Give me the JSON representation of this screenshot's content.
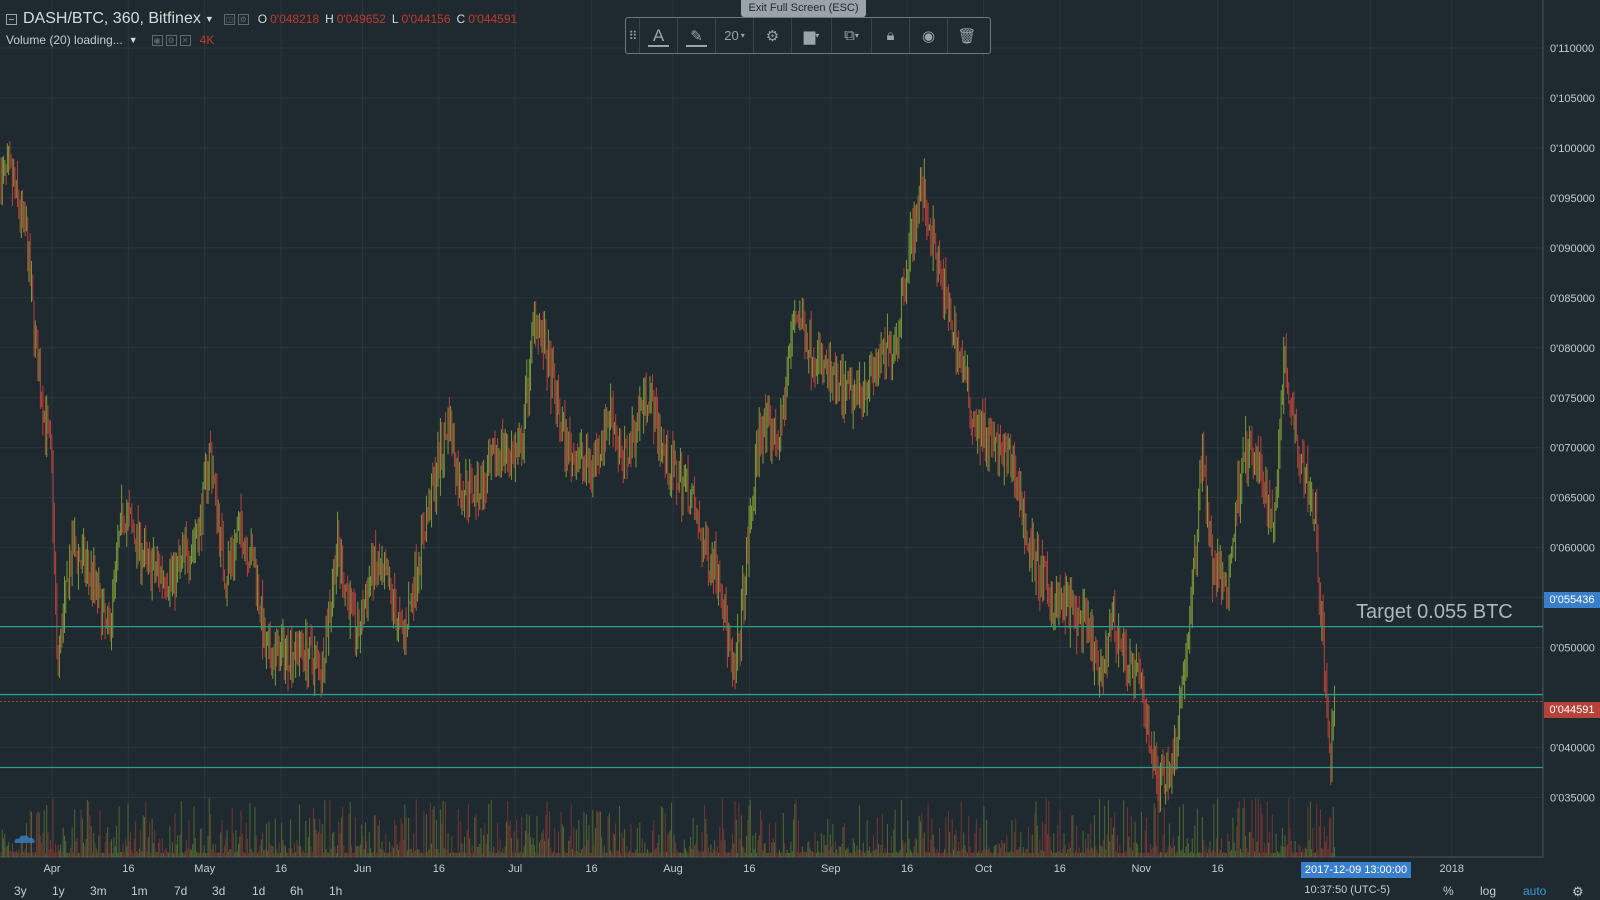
{
  "header": {
    "symbol": "DASH/BTC, 360, Bitfinex",
    "ohlc": [
      {
        "label": "O",
        "value": "0'048218"
      },
      {
        "label": "H",
        "value": "0'049652"
      },
      {
        "label": "L",
        "value": "0'044156"
      },
      {
        "label": "C",
        "value": "0'044591"
      }
    ],
    "volume_label": "Volume (20) loading...",
    "volume_value": "4K"
  },
  "exit_fullscreen": "Exit Full Screen (ESC)",
  "toolbar": {
    "font_size": "20",
    "icons": [
      "text-icon",
      "pencil-icon",
      "gear-icon",
      "fill-icon",
      "clone-icon",
      "lock-icon",
      "eye-icon",
      "trash-icon"
    ]
  },
  "annotation": "Target 0.055 BTC",
  "price_axis": {
    "ticks": [
      "0'110000",
      "0'105000",
      "0'100000",
      "0'095000",
      "0'090000",
      "0'085000",
      "0'080000",
      "0'075000",
      "0'070000",
      "0'065000",
      "0'060000",
      "0'055436",
      "0'050000",
      "0'044591",
      "0'040000",
      "0'035000"
    ]
  },
  "time_axis": {
    "labels": [
      "Apr",
      "16",
      "May",
      "16",
      "Jun",
      "16",
      "Jul",
      "16",
      "Aug",
      "16",
      "Sep",
      "16",
      "Oct",
      "16",
      "Nov",
      "16",
      "2018"
    ],
    "crosshair": "2017-12-09 13:00:00"
  },
  "price_markers": {
    "line_label": "0'055436",
    "last_price": "0'044591"
  },
  "timeframes": [
    "3y",
    "1y",
    "3m",
    "1m",
    "7d",
    "3d",
    "1d",
    "6h",
    "1h"
  ],
  "bottom_right": {
    "time": "10:37:50 (UTC-5)",
    "percent": "%",
    "log": "log",
    "auto": "auto"
  },
  "colors": {
    "background": "#1f2a30",
    "up": "#7a9a3a",
    "down": "#b5433a",
    "hline": "#2e9f8c",
    "accent": "#3a7fc9"
  },
  "chart_data": {
    "type": "candlestick",
    "symbol": "DASH/BTC",
    "interval": "360",
    "exchange": "Bitfinex",
    "x_start": "2017-03-24",
    "x_end": "2017-12-12",
    "ylim": [
      0.031,
      0.1115
    ],
    "close_path": [
      [
        "2017-03-24",
        0.097
      ],
      [
        "2017-03-27",
        0.091
      ],
      [
        "2017-03-29",
        0.079
      ],
      [
        "2017-04-01",
        0.068
      ],
      [
        "2017-04-02",
        0.048
      ],
      [
        "2017-04-05",
        0.06
      ],
      [
        "2017-04-09",
        0.057
      ],
      [
        "2017-04-12",
        0.051
      ],
      [
        "2017-04-15",
        0.064
      ],
      [
        "2017-04-20",
        0.058
      ],
      [
        "2017-04-25",
        0.057
      ],
      [
        "2017-04-30",
        0.062
      ],
      [
        "2017-05-02",
        0.07
      ],
      [
        "2017-05-05",
        0.057
      ],
      [
        "2017-05-08",
        0.062
      ],
      [
        "2017-05-11",
        0.058
      ],
      [
        "2017-05-13",
        0.049
      ],
      [
        "2017-05-20",
        0.05
      ],
      [
        "2017-05-24",
        0.048
      ],
      [
        "2017-05-27",
        0.06
      ],
      [
        "2017-05-31",
        0.051
      ],
      [
        "2017-06-03",
        0.058
      ],
      [
        "2017-06-06",
        0.056
      ],
      [
        "2017-06-09",
        0.051
      ],
      [
        "2017-06-14",
        0.064
      ],
      [
        "2017-06-18",
        0.073
      ],
      [
        "2017-06-20",
        0.066
      ],
      [
        "2017-06-25",
        0.066
      ],
      [
        "2017-06-28",
        0.07
      ],
      [
        "2017-07-02",
        0.069
      ],
      [
        "2017-07-05",
        0.084
      ],
      [
        "2017-07-08",
        0.077
      ],
      [
        "2017-07-11",
        0.07
      ],
      [
        "2017-07-16",
        0.068
      ],
      [
        "2017-07-20",
        0.074
      ],
      [
        "2017-07-22",
        0.068
      ],
      [
        "2017-07-27",
        0.076
      ],
      [
        "2017-07-31",
        0.068
      ],
      [
        "2017-08-04",
        0.066
      ],
      [
        "2017-08-07",
        0.06
      ],
      [
        "2017-08-10",
        0.058
      ],
      [
        "2017-08-13",
        0.046
      ],
      [
        "2017-08-15",
        0.056
      ],
      [
        "2017-08-18",
        0.072
      ],
      [
        "2017-08-22",
        0.071
      ],
      [
        "2017-08-25",
        0.084
      ],
      [
        "2017-08-28",
        0.08
      ],
      [
        "2017-09-02",
        0.076
      ],
      [
        "2017-09-05",
        0.075
      ],
      [
        "2017-09-10",
        0.078
      ],
      [
        "2017-09-14",
        0.081
      ],
      [
        "2017-09-16",
        0.089
      ],
      [
        "2017-09-19",
        0.096
      ],
      [
        "2017-09-22",
        0.088
      ],
      [
        "2017-09-26",
        0.08
      ],
      [
        "2017-09-29",
        0.073
      ],
      [
        "2017-10-03",
        0.07
      ],
      [
        "2017-10-07",
        0.068
      ],
      [
        "2017-10-10",
        0.06
      ],
      [
        "2017-10-14",
        0.055
      ],
      [
        "2017-10-18",
        0.054
      ],
      [
        "2017-10-22",
        0.051
      ],
      [
        "2017-10-24",
        0.046
      ],
      [
        "2017-10-26",
        0.053
      ],
      [
        "2017-10-29",
        0.049
      ],
      [
        "2017-11-01",
        0.046
      ],
      [
        "2017-11-04",
        0.037
      ],
      [
        "2017-11-07",
        0.038
      ],
      [
        "2017-11-09",
        0.046
      ],
      [
        "2017-11-11",
        0.055
      ],
      [
        "2017-11-13",
        0.07
      ],
      [
        "2017-11-15",
        0.058
      ],
      [
        "2017-11-18",
        0.056
      ],
      [
        "2017-11-21",
        0.07
      ],
      [
        "2017-11-24",
        0.068
      ],
      [
        "2017-11-27",
        0.062
      ],
      [
        "2017-11-29",
        0.079
      ],
      [
        "2017-12-02",
        0.07
      ],
      [
        "2017-12-05",
        0.064
      ],
      [
        "2017-12-07",
        0.048
      ],
      [
        "2017-12-08",
        0.038
      ],
      [
        "2017-12-09",
        0.0446
      ]
    ],
    "horizontal_lines": [
      0.0521,
      0.0453,
      0.038
    ],
    "last_price": 0.044591,
    "grid": true
  }
}
